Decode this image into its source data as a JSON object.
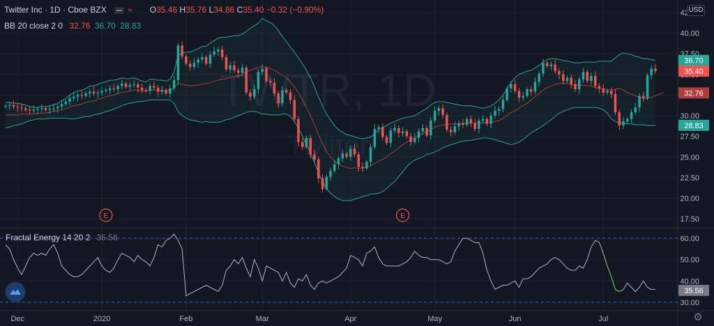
{
  "header": {
    "symbol_title": "Twitter Inc · 1D · Cboe BZX",
    "ohlc": {
      "o_label": "O",
      "o": "35.46",
      "h_label": "H",
      "h": "35.76",
      "l_label": "L",
      "l": "34.86",
      "c_label": "C",
      "c": "35.40",
      "change": "−0.32 (−0.90%)"
    },
    "bb_label": "BB 20 close 2 0",
    "bb_values": {
      "basis": "32.76",
      "upper": "36.70",
      "lower": "28.83"
    },
    "currency": "USD"
  },
  "watermark": {
    "ticker": "TWTR, 1D",
    "name": "Twitter"
  },
  "indicator": {
    "label": "Fractal Energy 14 20 2",
    "value": "35.56"
  },
  "colors": {
    "up": "#26a69a",
    "down": "#ef5350",
    "basis": "#b23b3b",
    "band": "#26a69a",
    "band_fill": "rgba(38,166,154,0.07)",
    "fe_line": "#b2b5be",
    "fe_low": "#4caf50",
    "dash": "#2962ff"
  },
  "earnings_markers": [
    {
      "label": "E",
      "date_index": 25
    },
    {
      "label": "E",
      "date_index": 99
    }
  ],
  "chart_data": [
    {
      "type": "candlestick",
      "title": "Twitter Inc, 1D, Cboe BZX",
      "ylim": [
        17.0,
        42.5
      ],
      "y_ticks": [
        "42.50",
        "40.00",
        "37.50",
        "35.00",
        "32.50",
        "30.00",
        "27.50",
        "25.00",
        "22.50",
        "20.00",
        "17.50"
      ],
      "x_tick_labels": [
        "Dec",
        "2020",
        "Feb",
        "Mar",
        "Apr",
        "May",
        "Jun",
        "Jul"
      ],
      "x_tick_index": [
        3,
        24,
        45,
        64,
        86,
        107,
        127,
        149
      ],
      "price_labels": [
        {
          "value": "36.70",
          "kind": "upper"
        },
        {
          "value": "35.40",
          "kind": "last"
        },
        {
          "value": "32.76",
          "kind": "basis"
        },
        {
          "value": "28.83",
          "kind": "lower"
        }
      ],
      "closes": [
        31.2,
        31.3,
        31.1,
        31.0,
        30.9,
        30.7,
        30.6,
        30.7,
        30.8,
        30.9,
        30.7,
        30.8,
        30.9,
        31.1,
        31.4,
        31.7,
        32.1,
        32.3,
        32.5,
        32.4,
        32.7,
        32.9,
        32.7,
        32.8,
        33.0,
        33.1,
        33.3,
        33.2,
        33.6,
        33.9,
        33.5,
        33.7,
        33.8,
        33.4,
        33.1,
        33.0,
        33.6,
        33.4,
        32.9,
        33.1,
        32.7,
        33.3,
        34.3,
        38.5,
        37.2,
        36.3,
        35.9,
        36.4,
        36.8,
        37.1,
        36.3,
        37.4,
        37.8,
        38.0,
        37.1,
        35.6,
        36.1,
        35.5,
        35.2,
        35.8,
        32.8,
        32.3,
        33.2,
        35.3,
        35.7,
        34.2,
        34.0,
        32.7,
        31.5,
        33.1,
        32.8,
        31.9,
        29.6,
        26.8,
        26.2,
        27.3,
        25.3,
        24.7,
        22.4,
        21.1,
        22.6,
        23.3,
        24.1,
        24.8,
        25.4,
        25.0,
        26.0,
        25.3,
        23.8,
        23.6,
        24.4,
        26.2,
        28.4,
        28.6,
        27.4,
        26.7,
        28.2,
        28.5,
        27.9,
        28.1,
        27.5,
        26.8,
        27.3,
        28.1,
        28.5,
        27.6,
        29.4,
        30.6,
        30.9,
        30.1,
        28.3,
        28.0,
        28.7,
        29.1,
        28.9,
        29.6,
        29.1,
        28.4,
        29.4,
        29.6,
        29.0,
        30.0,
        30.6,
        30.8,
        31.9,
        33.3,
        33.8,
        33.0,
        32.2,
        32.4,
        33.2,
        32.9,
        34.1,
        35.1,
        36.4,
        36.0,
        36.2,
        35.4,
        35.0,
        34.2,
        34.6,
        33.8,
        33.2,
        34.4,
        35.3,
        34.2,
        34.8,
        33.6,
        33.3,
        32.8,
        33.0,
        32.6,
        30.4,
        28.8,
        29.3,
        29.6,
        30.4,
        31.0,
        32.4,
        32.1,
        34.9,
        35.7,
        35.4
      ],
      "upper_band": [
        31.6,
        31.6,
        31.5,
        31.5,
        31.4,
        31.3,
        31.1,
        31.0,
        31.0,
        31.1,
        31.1,
        31.2,
        31.3,
        31.5,
        31.8,
        32.1,
        32.5,
        32.8,
        33.0,
        33.1,
        33.3,
        33.6,
        33.6,
        33.8,
        34.0,
        34.1,
        34.3,
        34.3,
        34.4,
        34.6,
        34.5,
        34.5,
        34.6,
        34.4,
        34.2,
        34.1,
        34.4,
        34.4,
        34.3,
        34.3,
        34.2,
        34.4,
        35.3,
        37.3,
        37.6,
        37.7,
        37.7,
        37.9,
        38.1,
        38.4,
        38.4,
        38.8,
        39.1,
        39.4,
        39.5,
        39.5,
        39.6,
        39.7,
        39.7,
        39.9,
        40.2,
        40.6,
        40.9,
        41.2,
        41.8,
        41.5,
        41.3,
        40.9,
        40.3,
        39.6,
        39.0,
        38.3,
        37.7,
        37.0,
        36.3,
        35.5,
        34.6,
        33.5,
        32.3,
        31.2,
        30.2,
        29.5,
        28.8,
        28.3,
        28.0,
        27.7,
        27.6,
        27.4,
        27.3,
        27.2,
        27.3,
        27.4,
        27.8,
        28.3,
        28.6,
        28.8,
        29.1,
        29.3,
        29.5,
        29.7,
        29.8,
        29.9,
        30.0,
        30.3,
        30.6,
        30.9,
        31.3,
        31.6,
        31.7,
        31.7,
        31.6,
        31.5,
        31.4,
        31.3,
        31.2,
        31.2,
        31.2,
        31.1,
        31.0,
        30.9,
        31.0,
        31.2,
        31.5,
        31.9,
        32.5,
        33.3,
        34.0,
        34.6,
        35.0,
        35.2,
        35.4,
        35.5,
        35.8,
        36.1,
        36.5,
        36.8,
        36.9,
        36.9,
        36.8,
        36.7,
        36.6,
        36.5,
        36.4,
        36.4,
        36.5,
        36.5,
        36.5,
        36.5,
        36.6,
        36.6,
        36.6,
        36.6,
        37.0,
        37.4,
        37.6,
        37.5,
        37.4,
        37.2,
        37.1,
        36.9,
        36.9,
        36.8,
        36.7
      ],
      "lower_band": [
        28.5,
        28.6,
        28.8,
        28.9,
        29.0,
        29.2,
        29.4,
        29.5,
        29.6,
        29.6,
        29.6,
        29.7,
        29.7,
        29.7,
        29.7,
        29.7,
        29.6,
        29.6,
        29.7,
        29.8,
        29.9,
        29.9,
        30.1,
        30.2,
        30.3,
        30.5,
        30.6,
        30.8,
        31.0,
        31.2,
        31.4,
        31.5,
        31.6,
        31.7,
        31.7,
        31.8,
        31.9,
        31.9,
        31.9,
        31.9,
        31.9,
        31.9,
        31.5,
        30.5,
        30.0,
        29.7,
        29.5,
        29.4,
        29.3,
        29.2,
        29.3,
        29.2,
        29.2,
        29.2,
        29.3,
        29.5,
        29.6,
        29.8,
        30.0,
        30.2,
        30.4,
        30.5,
        30.5,
        30.4,
        30.2,
        30.2,
        30.1,
        30.1,
        30.1,
        30.2,
        30.2,
        29.9,
        29.3,
        28.5,
        27.5,
        26.5,
        25.5,
        24.3,
        23.1,
        22.0,
        21.2,
        20.6,
        20.2,
        19.9,
        19.7,
        19.7,
        19.7,
        19.9,
        20.0,
        20.2,
        20.3,
        20.5,
        20.5,
        20.6,
        20.8,
        21.2,
        21.6,
        22.0,
        22.6,
        23.2,
        23.8,
        24.3,
        24.6,
        24.8,
        25.0,
        25.3,
        25.4,
        25.6,
        25.8,
        26.1,
        26.3,
        26.5,
        26.6,
        26.8,
        26.9,
        27.0,
        27.0,
        27.1,
        27.2,
        27.3,
        27.3,
        27.2,
        27.1,
        26.9,
        26.8,
        26.6,
        26.5,
        26.6,
        26.8,
        27.1,
        27.5,
        27.9,
        28.2,
        28.5,
        28.8,
        29.2,
        29.5,
        29.9,
        30.3,
        30.5,
        30.7,
        30.9,
        31.0,
        31.0,
        31.0,
        31.0,
        31.0,
        31.0,
        30.9,
        30.7,
        30.3,
        29.6,
        29.3,
        29.1,
        29.1,
        29.0,
        29.0,
        28.9,
        28.9,
        28.9,
        28.8,
        28.8,
        28.8
      ],
      "basis": [
        30.1,
        30.1,
        30.1,
        30.1,
        30.2,
        30.2,
        30.2,
        30.2,
        30.3,
        30.3,
        30.3,
        30.4,
        30.5,
        30.6,
        30.7,
        30.9,
        31.0,
        31.2,
        31.3,
        31.4,
        31.6,
        31.7,
        31.8,
        32.0,
        32.1,
        32.3,
        32.4,
        32.5,
        32.7,
        32.8,
        32.9,
        33.0,
        33.1,
        33.1,
        33.0,
        33.0,
        33.1,
        33.1,
        33.1,
        33.1,
        33.0,
        33.1,
        33.4,
        33.9,
        33.8,
        33.7,
        33.6,
        33.7,
        33.7,
        33.8,
        33.9,
        34.0,
        34.2,
        34.3,
        34.4,
        34.5,
        34.6,
        34.7,
        34.8,
        35.0,
        35.3,
        35.5,
        35.7,
        35.8,
        36.0,
        35.8,
        35.7,
        35.5,
        35.2,
        34.9,
        34.6,
        34.1,
        33.5,
        32.8,
        31.9,
        31.0,
        30.0,
        28.9,
        27.7,
        26.6,
        25.7,
        25.0,
        24.5,
        24.1,
        23.9,
        23.7,
        23.6,
        23.7,
        23.6,
        23.7,
        23.8,
        23.9,
        24.2,
        24.5,
        24.7,
        25.0,
        25.4,
        25.7,
        26.1,
        26.5,
        26.8,
        27.1,
        27.3,
        27.6,
        27.8,
        28.1,
        28.3,
        28.6,
        28.8,
        28.9,
        28.9,
        29.0,
        29.0,
        29.0,
        29.0,
        29.1,
        29.1,
        29.1,
        29.1,
        29.1,
        29.2,
        29.2,
        29.3,
        29.4,
        29.7,
        30.0,
        30.4,
        30.6,
        30.9,
        31.2,
        31.5,
        31.9,
        32.3,
        32.7,
        33.1,
        33.4,
        33.6,
        33.8,
        33.9,
        33.9,
        33.9,
        33.8,
        33.7,
        33.7,
        33.7,
        33.6,
        33.6,
        33.4,
        33.3,
        33.2,
        33.1,
        33.1,
        33.2,
        33.3,
        33.1,
        32.8,
        32.6,
        32.4,
        32.2,
        32.1,
        32.1,
        32.2,
        32.4,
        32.6,
        32.8
      ]
    },
    {
      "type": "line",
      "title": "Fractal Energy 14 20 2",
      "ylim": [
        28,
        62
      ],
      "y_ticks": [
        "60.00",
        "50.00",
        "40.00",
        "30.00"
      ],
      "reference_lines": [
        60,
        30
      ],
      "last_value": "35.56",
      "values": [
        57,
        55,
        50,
        46,
        43,
        47,
        51,
        53,
        52,
        53,
        52,
        55,
        57,
        53,
        47,
        45,
        43,
        42,
        42,
        43,
        45,
        47,
        49,
        51,
        47,
        45,
        44,
        46,
        50,
        53,
        52,
        51,
        49,
        52,
        50,
        49,
        47,
        51,
        57,
        56,
        59,
        60,
        62,
        59,
        55,
        33,
        34,
        35,
        36,
        37,
        38,
        37,
        36,
        35,
        38,
        45,
        47,
        50,
        48,
        51,
        46,
        42,
        50,
        46,
        40,
        47,
        46,
        45,
        44,
        40,
        44,
        39,
        37,
        41,
        40,
        43,
        38,
        36,
        39,
        40,
        39,
        40,
        41,
        42,
        44,
        46,
        52,
        51,
        50,
        47,
        53,
        54,
        56,
        51,
        48,
        47,
        47,
        47,
        47,
        48,
        49,
        51,
        54,
        52,
        51,
        51,
        50,
        50,
        50,
        49,
        48,
        49,
        54,
        57,
        60,
        60,
        59,
        58,
        58,
        53,
        45,
        40,
        36,
        37,
        38,
        38,
        39,
        40,
        37,
        41,
        41,
        42,
        44,
        46,
        47,
        48,
        50,
        51,
        50,
        48,
        46,
        45,
        45,
        47,
        46,
        50,
        56,
        59,
        58,
        53,
        47,
        42,
        36,
        35,
        36,
        39,
        37,
        35,
        37,
        40,
        37,
        36,
        36
      ]
    }
  ]
}
